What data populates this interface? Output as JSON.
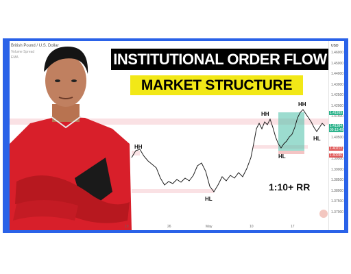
{
  "chart": {
    "symbol": "British Pound / U.S. Dollar",
    "indicator1": "Volume Spread",
    "indicator2": "EMA",
    "currency": "USD"
  },
  "banner": {
    "line1": "INSTITUTIONAL ORDER FLOW",
    "line2": "MARKET STRUCTURE"
  },
  "annotations": {
    "hh1": "HH",
    "hl1": "HL",
    "hh2": "HH",
    "hl2": "HL",
    "hh3": "HH",
    "hl3": "HL",
    "rr": "1:10+ RR"
  },
  "yaxis": {
    "ticks": [
      "1.46000",
      "1.45000",
      "1.44000",
      "1.43000",
      "1.42500",
      "1.42000",
      "1.41500",
      "1.41000",
      "1.40500",
      "1.40000",
      "1.39500",
      "1.39000",
      "1.38500",
      "1.38000",
      "1.37500",
      "1.37000"
    ],
    "current_price": "1.41384",
    "countdown": "09:13:49",
    "target_price": "1.41999",
    "entry_price": "1.40212",
    "stop_price": "1.40036"
  },
  "xaxis": {
    "ticks": [
      "19",
      "26",
      "May",
      "10",
      "17"
    ]
  },
  "colors": {
    "frame": "#2a62e8",
    "banner_bg": "#000000",
    "banner_highlight": "#f2e817",
    "profit_zone": "#4bbfa8",
    "shirt": "#d81f2a"
  }
}
